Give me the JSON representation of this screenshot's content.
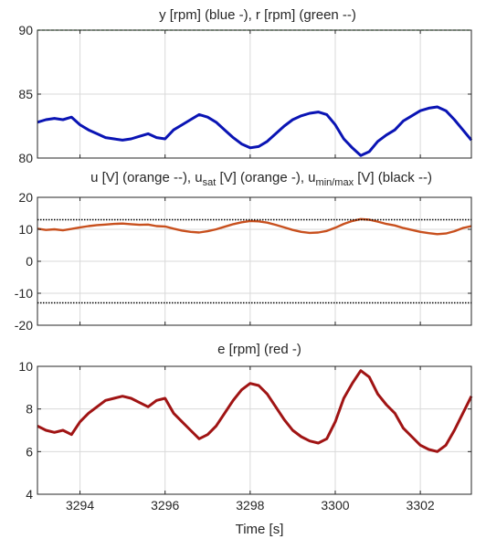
{
  "chart_data": [
    {
      "type": "line",
      "title": "y [rpm] (blue -), r [rpm] (green --)",
      "xlim": [
        3293,
        3303.2
      ],
      "ylim": [
        80,
        90
      ],
      "xticks": [
        3294,
        3296,
        3298,
        3300,
        3302
      ],
      "yticks": [
        80,
        85,
        90
      ],
      "grid": true,
      "series": [
        {
          "color": "#0a14b4",
          "style": "solid",
          "x": [
            3293.0,
            3293.2,
            3293.4,
            3293.6,
            3293.8,
            3294.0,
            3294.2,
            3294.4,
            3294.6,
            3294.8,
            3295.0,
            3295.2,
            3295.4,
            3295.6,
            3295.8,
            3296.0,
            3296.2,
            3296.4,
            3296.6,
            3296.8,
            3297.0,
            3297.2,
            3297.4,
            3297.6,
            3297.8,
            3298.0,
            3298.2,
            3298.4,
            3298.6,
            3298.8,
            3299.0,
            3299.2,
            3299.4,
            3299.6,
            3299.8,
            3300.0,
            3300.2,
            3300.4,
            3300.6,
            3300.8,
            3301.0,
            3301.2,
            3301.4,
            3301.6,
            3301.8,
            3302.0,
            3302.2,
            3302.4,
            3302.6,
            3302.8,
            3303.0,
            3303.2
          ],
          "y": [
            82.8,
            83.0,
            83.1,
            83.0,
            83.2,
            82.6,
            82.2,
            81.9,
            81.6,
            81.5,
            81.4,
            81.5,
            81.7,
            81.9,
            81.6,
            81.5,
            82.2,
            82.6,
            83.0,
            83.4,
            83.2,
            82.8,
            82.2,
            81.6,
            81.1,
            80.8,
            80.9,
            81.3,
            81.9,
            82.5,
            83.0,
            83.3,
            83.5,
            83.6,
            83.4,
            82.6,
            81.5,
            80.8,
            80.2,
            80.5,
            81.3,
            81.8,
            82.2,
            82.9,
            83.3,
            83.7,
            83.9,
            84.0,
            83.7,
            83.0,
            82.2,
            81.4
          ]
        },
        {
          "color": "#1e8c1e",
          "style": "dashed",
          "x": [
            3293,
            3303.2
          ],
          "y": [
            90,
            90
          ]
        }
      ]
    },
    {
      "type": "line",
      "title_parts": [
        {
          "t": "u [V] (orange --), u"
        },
        {
          "t": "sat",
          "sub": true
        },
        {
          "t": " [V] (orange -), u"
        },
        {
          "t": "min/max",
          "sub": true
        },
        {
          "t": " [V] (black --)"
        }
      ],
      "xlim": [
        3293,
        3303.2
      ],
      "ylim": [
        -20,
        20
      ],
      "xticks": [
        3294,
        3296,
        3298,
        3300,
        3302
      ],
      "yticks": [
        -20,
        -10,
        0,
        10,
        20
      ],
      "grid": true,
      "series": [
        {
          "color": "#c8501e",
          "style": "solid",
          "x": [
            3293.0,
            3293.2,
            3293.4,
            3293.6,
            3293.8,
            3294.0,
            3294.2,
            3294.4,
            3294.6,
            3294.8,
            3295.0,
            3295.2,
            3295.4,
            3295.6,
            3295.8,
            3296.0,
            3296.2,
            3296.4,
            3296.6,
            3296.8,
            3297.0,
            3297.2,
            3297.4,
            3297.6,
            3297.8,
            3298.0,
            3298.2,
            3298.4,
            3298.6,
            3298.8,
            3299.0,
            3299.2,
            3299.4,
            3299.6,
            3299.8,
            3300.0,
            3300.2,
            3300.4,
            3300.6,
            3300.8,
            3301.0,
            3301.2,
            3301.4,
            3301.6,
            3301.8,
            3302.0,
            3302.2,
            3302.4,
            3302.6,
            3302.8,
            3303.0,
            3303.2
          ],
          "y": [
            10.2,
            9.8,
            10.0,
            9.7,
            10.1,
            10.6,
            11.0,
            11.3,
            11.5,
            11.7,
            11.8,
            11.6,
            11.4,
            11.5,
            11.0,
            10.9,
            10.2,
            9.6,
            9.2,
            9.0,
            9.4,
            10.0,
            10.8,
            11.6,
            12.2,
            12.6,
            12.5,
            12.1,
            11.4,
            10.6,
            9.8,
            9.2,
            8.9,
            9.0,
            9.5,
            10.5,
            11.7,
            12.6,
            13.2,
            13.0,
            12.4,
            11.7,
            11.2,
            10.4,
            9.8,
            9.2,
            8.8,
            8.5,
            8.7,
            9.4,
            10.4,
            11.0
          ]
        },
        {
          "color": "#000000",
          "style": "dotted",
          "x": [
            3293,
            3303.2
          ],
          "y": [
            13,
            13
          ]
        },
        {
          "color": "#000000",
          "style": "dotted",
          "x": [
            3293,
            3303.2
          ],
          "y": [
            -13,
            -13
          ]
        }
      ]
    },
    {
      "type": "line",
      "title": "e [rpm] (red -)",
      "xlabel": "Time [s]",
      "xlim": [
        3293,
        3303.2
      ],
      "ylim": [
        4,
        10
      ],
      "xticks": [
        3294,
        3296,
        3298,
        3300,
        3302
      ],
      "yticks": [
        4,
        6,
        8,
        10
      ],
      "grid": true,
      "series": [
        {
          "color": "#a01414",
          "style": "solid",
          "x": [
            3293.0,
            3293.2,
            3293.4,
            3293.6,
            3293.8,
            3294.0,
            3294.2,
            3294.4,
            3294.6,
            3294.8,
            3295.0,
            3295.2,
            3295.4,
            3295.6,
            3295.8,
            3296.0,
            3296.2,
            3296.4,
            3296.6,
            3296.8,
            3297.0,
            3297.2,
            3297.4,
            3297.6,
            3297.8,
            3298.0,
            3298.2,
            3298.4,
            3298.6,
            3298.8,
            3299.0,
            3299.2,
            3299.4,
            3299.6,
            3299.8,
            3300.0,
            3300.2,
            3300.4,
            3300.6,
            3300.8,
            3301.0,
            3301.2,
            3301.4,
            3301.6,
            3301.8,
            3302.0,
            3302.2,
            3302.4,
            3302.6,
            3302.8,
            3303.0,
            3303.2
          ],
          "y": [
            7.2,
            7.0,
            6.9,
            7.0,
            6.8,
            7.4,
            7.8,
            8.1,
            8.4,
            8.5,
            8.6,
            8.5,
            8.3,
            8.1,
            8.4,
            8.5,
            7.8,
            7.4,
            7.0,
            6.6,
            6.8,
            7.2,
            7.8,
            8.4,
            8.9,
            9.2,
            9.1,
            8.7,
            8.1,
            7.5,
            7.0,
            6.7,
            6.5,
            6.4,
            6.6,
            7.4,
            8.5,
            9.2,
            9.8,
            9.5,
            8.7,
            8.2,
            7.8,
            7.1,
            6.7,
            6.3,
            6.1,
            6.0,
            6.3,
            7.0,
            7.8,
            8.6
          ]
        }
      ]
    }
  ]
}
